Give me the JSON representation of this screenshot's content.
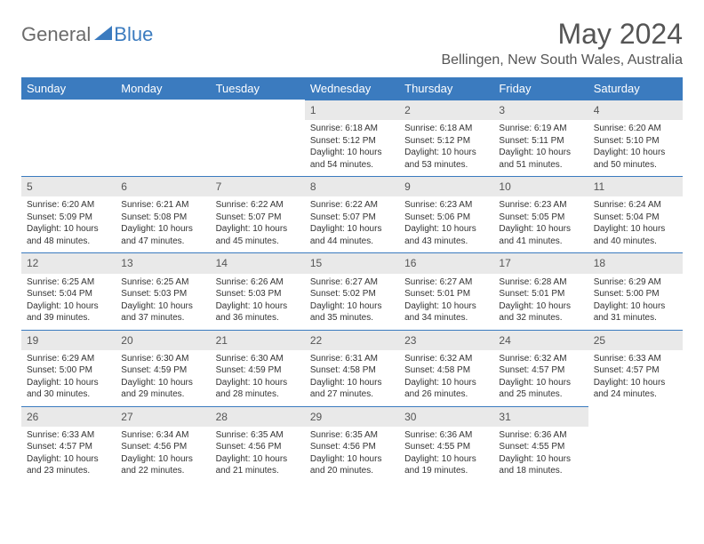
{
  "logo": {
    "general": "General",
    "blue": "Blue"
  },
  "title": "May 2024",
  "location": "Bellingen, New South Wales, Australia",
  "colors": {
    "header_bg": "#3b7bbf",
    "header_fg": "#ffffff",
    "daynum_bg": "#e9e9e9",
    "border": "#3b7bbf",
    "text": "#333333"
  },
  "weekdays": [
    "Sunday",
    "Monday",
    "Tuesday",
    "Wednesday",
    "Thursday",
    "Friday",
    "Saturday"
  ],
  "leading_blanks": 3,
  "days": [
    {
      "n": 1,
      "sunrise": "6:18 AM",
      "sunset": "5:12 PM",
      "daylight": "10 hours and 54 minutes."
    },
    {
      "n": 2,
      "sunrise": "6:18 AM",
      "sunset": "5:12 PM",
      "daylight": "10 hours and 53 minutes."
    },
    {
      "n": 3,
      "sunrise": "6:19 AM",
      "sunset": "5:11 PM",
      "daylight": "10 hours and 51 minutes."
    },
    {
      "n": 4,
      "sunrise": "6:20 AM",
      "sunset": "5:10 PM",
      "daylight": "10 hours and 50 minutes."
    },
    {
      "n": 5,
      "sunrise": "6:20 AM",
      "sunset": "5:09 PM",
      "daylight": "10 hours and 48 minutes."
    },
    {
      "n": 6,
      "sunrise": "6:21 AM",
      "sunset": "5:08 PM",
      "daylight": "10 hours and 47 minutes."
    },
    {
      "n": 7,
      "sunrise": "6:22 AM",
      "sunset": "5:07 PM",
      "daylight": "10 hours and 45 minutes."
    },
    {
      "n": 8,
      "sunrise": "6:22 AM",
      "sunset": "5:07 PM",
      "daylight": "10 hours and 44 minutes."
    },
    {
      "n": 9,
      "sunrise": "6:23 AM",
      "sunset": "5:06 PM",
      "daylight": "10 hours and 43 minutes."
    },
    {
      "n": 10,
      "sunrise": "6:23 AM",
      "sunset": "5:05 PM",
      "daylight": "10 hours and 41 minutes."
    },
    {
      "n": 11,
      "sunrise": "6:24 AM",
      "sunset": "5:04 PM",
      "daylight": "10 hours and 40 minutes."
    },
    {
      "n": 12,
      "sunrise": "6:25 AM",
      "sunset": "5:04 PM",
      "daylight": "10 hours and 39 minutes."
    },
    {
      "n": 13,
      "sunrise": "6:25 AM",
      "sunset": "5:03 PM",
      "daylight": "10 hours and 37 minutes."
    },
    {
      "n": 14,
      "sunrise": "6:26 AM",
      "sunset": "5:03 PM",
      "daylight": "10 hours and 36 minutes."
    },
    {
      "n": 15,
      "sunrise": "6:27 AM",
      "sunset": "5:02 PM",
      "daylight": "10 hours and 35 minutes."
    },
    {
      "n": 16,
      "sunrise": "6:27 AM",
      "sunset": "5:01 PM",
      "daylight": "10 hours and 34 minutes."
    },
    {
      "n": 17,
      "sunrise": "6:28 AM",
      "sunset": "5:01 PM",
      "daylight": "10 hours and 32 minutes."
    },
    {
      "n": 18,
      "sunrise": "6:29 AM",
      "sunset": "5:00 PM",
      "daylight": "10 hours and 31 minutes."
    },
    {
      "n": 19,
      "sunrise": "6:29 AM",
      "sunset": "5:00 PM",
      "daylight": "10 hours and 30 minutes."
    },
    {
      "n": 20,
      "sunrise": "6:30 AM",
      "sunset": "4:59 PM",
      "daylight": "10 hours and 29 minutes."
    },
    {
      "n": 21,
      "sunrise": "6:30 AM",
      "sunset": "4:59 PM",
      "daylight": "10 hours and 28 minutes."
    },
    {
      "n": 22,
      "sunrise": "6:31 AM",
      "sunset": "4:58 PM",
      "daylight": "10 hours and 27 minutes."
    },
    {
      "n": 23,
      "sunrise": "6:32 AM",
      "sunset": "4:58 PM",
      "daylight": "10 hours and 26 minutes."
    },
    {
      "n": 24,
      "sunrise": "6:32 AM",
      "sunset": "4:57 PM",
      "daylight": "10 hours and 25 minutes."
    },
    {
      "n": 25,
      "sunrise": "6:33 AM",
      "sunset": "4:57 PM",
      "daylight": "10 hours and 24 minutes."
    },
    {
      "n": 26,
      "sunrise": "6:33 AM",
      "sunset": "4:57 PM",
      "daylight": "10 hours and 23 minutes."
    },
    {
      "n": 27,
      "sunrise": "6:34 AM",
      "sunset": "4:56 PM",
      "daylight": "10 hours and 22 minutes."
    },
    {
      "n": 28,
      "sunrise": "6:35 AM",
      "sunset": "4:56 PM",
      "daylight": "10 hours and 21 minutes."
    },
    {
      "n": 29,
      "sunrise": "6:35 AM",
      "sunset": "4:56 PM",
      "daylight": "10 hours and 20 minutes."
    },
    {
      "n": 30,
      "sunrise": "6:36 AM",
      "sunset": "4:55 PM",
      "daylight": "10 hours and 19 minutes."
    },
    {
      "n": 31,
      "sunrise": "6:36 AM",
      "sunset": "4:55 PM",
      "daylight": "10 hours and 18 minutes."
    }
  ],
  "labels": {
    "sunrise": "Sunrise:",
    "sunset": "Sunset:",
    "daylight": "Daylight:"
  }
}
